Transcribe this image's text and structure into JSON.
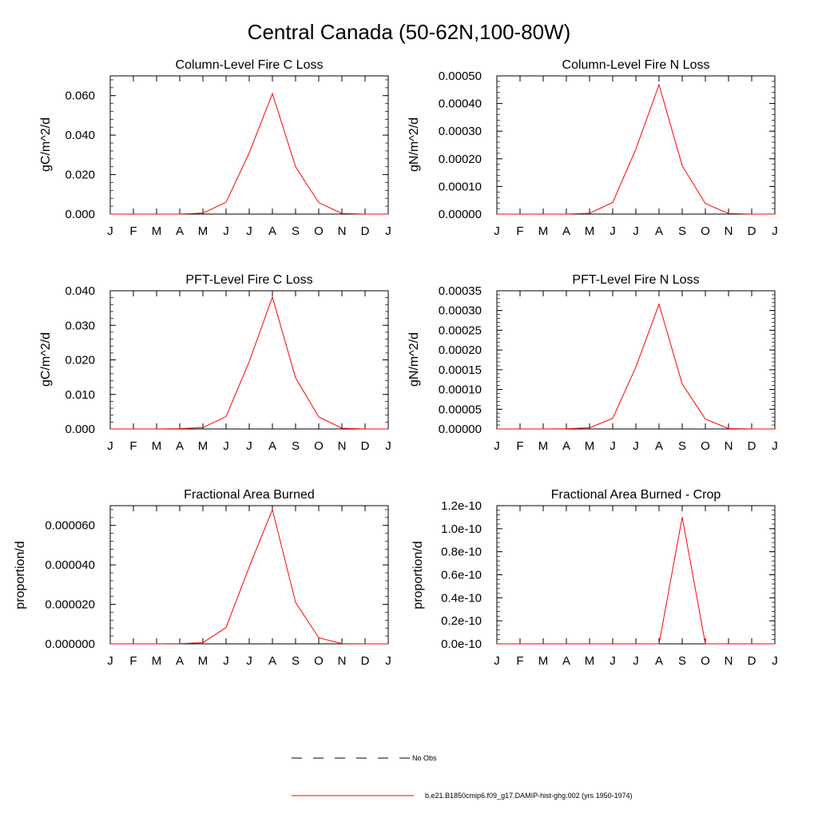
{
  "figure": {
    "title": "Central Canada (50-62N,100-80W)"
  },
  "legend": {
    "items": [
      {
        "label": "No Obs",
        "style": "dashed",
        "color": "#000000"
      },
      {
        "label": "b.e21.B1850cmip6.f09_g17.DAMIP-hist-ghg.002 (yrs 1950-1974)",
        "style": "solid",
        "color": "#ff0000"
      }
    ]
  },
  "colors": {
    "series": "#ff0000",
    "axis": "#000000"
  },
  "chart_data": [
    {
      "type": "line",
      "title": "Column-Level Fire C Loss",
      "ylabel": "gC/m^2/d",
      "xlabel": "",
      "categories": [
        "J",
        "F",
        "M",
        "A",
        "M",
        "J",
        "J",
        "A",
        "S",
        "O",
        "N",
        "D",
        "J"
      ],
      "ylim": [
        0,
        0.07
      ],
      "yticks": [
        0,
        0.02,
        0.04,
        0.06
      ],
      "ytick_labels": [
        "0.000",
        "0.020",
        "0.040",
        "0.060"
      ],
      "grid": false,
      "series": [
        {
          "values": [
            0,
            0,
            0,
            0,
            0.0005,
            0.006,
            0.031,
            0.061,
            0.024,
            0.0058,
            0.0003,
            0,
            0
          ]
        }
      ]
    },
    {
      "type": "line",
      "title": "Column-Level Fire N Loss",
      "ylabel": "gN/m^2/d",
      "xlabel": "",
      "categories": [
        "J",
        "F",
        "M",
        "A",
        "M",
        "J",
        "J",
        "A",
        "S",
        "O",
        "N",
        "D",
        "J"
      ],
      "ylim": [
        0,
        0.0005
      ],
      "yticks": [
        0,
        0.0001,
        0.0002,
        0.0003,
        0.0004,
        0.0005
      ],
      "ytick_labels": [
        "0.00000",
        "0.00010",
        "0.00020",
        "0.00030",
        "0.00040",
        "0.00050"
      ],
      "grid": false,
      "series": [
        {
          "values": [
            0,
            0,
            0,
            0,
            3e-06,
            4.2e-05,
            0.000235,
            0.000468,
            0.000175,
            3.8e-05,
            2e-06,
            0,
            0
          ]
        }
      ]
    },
    {
      "type": "line",
      "title": "PFT-Level Fire C Loss",
      "ylabel": "gC/m^2/d",
      "xlabel": "",
      "categories": [
        "J",
        "F",
        "M",
        "A",
        "M",
        "J",
        "J",
        "A",
        "S",
        "O",
        "N",
        "D",
        "J"
      ],
      "ylim": [
        0,
        0.04
      ],
      "yticks": [
        0,
        0.01,
        0.02,
        0.03,
        0.04
      ],
      "ytick_labels": [
        "0.000",
        "0.010",
        "0.020",
        "0.030",
        "0.040"
      ],
      "grid": false,
      "series": [
        {
          "values": [
            0,
            0,
            0,
            0.0001,
            0.0004,
            0.0036,
            0.0195,
            0.0382,
            0.0148,
            0.0035,
            0.0002,
            0,
            0
          ]
        }
      ]
    },
    {
      "type": "line",
      "title": "PFT-Level Fire N Loss",
      "ylabel": "gN/m^2/d",
      "xlabel": "",
      "categories": [
        "J",
        "F",
        "M",
        "A",
        "M",
        "J",
        "J",
        "A",
        "S",
        "O",
        "N",
        "D",
        "J"
      ],
      "ylim": [
        0,
        0.00035
      ],
      "yticks": [
        0,
        5e-05,
        0.0001,
        0.00015,
        0.0002,
        0.00025,
        0.0003,
        0.00035
      ],
      "ytick_labels": [
        "0.00000",
        "0.00005",
        "0.00010",
        "0.00015",
        "0.00020",
        "0.00025",
        "0.00030",
        "0.00035"
      ],
      "grid": false,
      "series": [
        {
          "values": [
            0,
            0,
            0,
            5e-07,
            3e-06,
            2.7e-05,
            0.000157,
            0.000316,
            0.000114,
            2.5e-05,
            1e-06,
            0,
            0
          ]
        }
      ]
    },
    {
      "type": "line",
      "title": "Fractional Area Burned",
      "ylabel": "proportion/d",
      "xlabel": "",
      "categories": [
        "J",
        "F",
        "M",
        "A",
        "M",
        "J",
        "J",
        "A",
        "S",
        "O",
        "N",
        "D",
        "J"
      ],
      "ylim": [
        0,
        7e-05
      ],
      "yticks": [
        0,
        2e-05,
        4e-05,
        6e-05
      ],
      "ytick_labels": [
        "0.000000",
        "0.000020",
        "0.000040",
        "0.000060"
      ],
      "grid": false,
      "series": [
        {
          "values": [
            0,
            0,
            0,
            1e-07,
            6e-07,
            8.3e-06,
            3.9e-05,
            6.8e-05,
            2.1e-05,
            3.1e-06,
            1e-07,
            0,
            0
          ]
        }
      ]
    },
    {
      "type": "line",
      "title": "Fractional Area Burned - Crop",
      "ylabel": "proportion/d",
      "xlabel": "",
      "categories": [
        "J",
        "F",
        "M",
        "A",
        "M",
        "J",
        "J",
        "A",
        "S",
        "O",
        "N",
        "D",
        "J"
      ],
      "ylim": [
        0,
        1.2e-10
      ],
      "yticks": [
        0,
        2e-11,
        4e-11,
        6e-11,
        8e-11,
        1e-10,
        1.2e-10
      ],
      "ytick_labels": [
        "0.0e-10",
        "0.2e-10",
        "0.4e-10",
        "0.6e-10",
        "0.8e-10",
        "1.0e-10",
        "1.2e-10"
      ],
      "grid": false,
      "series": [
        {
          "values": [
            0,
            0,
            0,
            0,
            0,
            0,
            0,
            0,
            1.1e-10,
            0,
            0,
            0,
            0
          ]
        }
      ]
    }
  ]
}
